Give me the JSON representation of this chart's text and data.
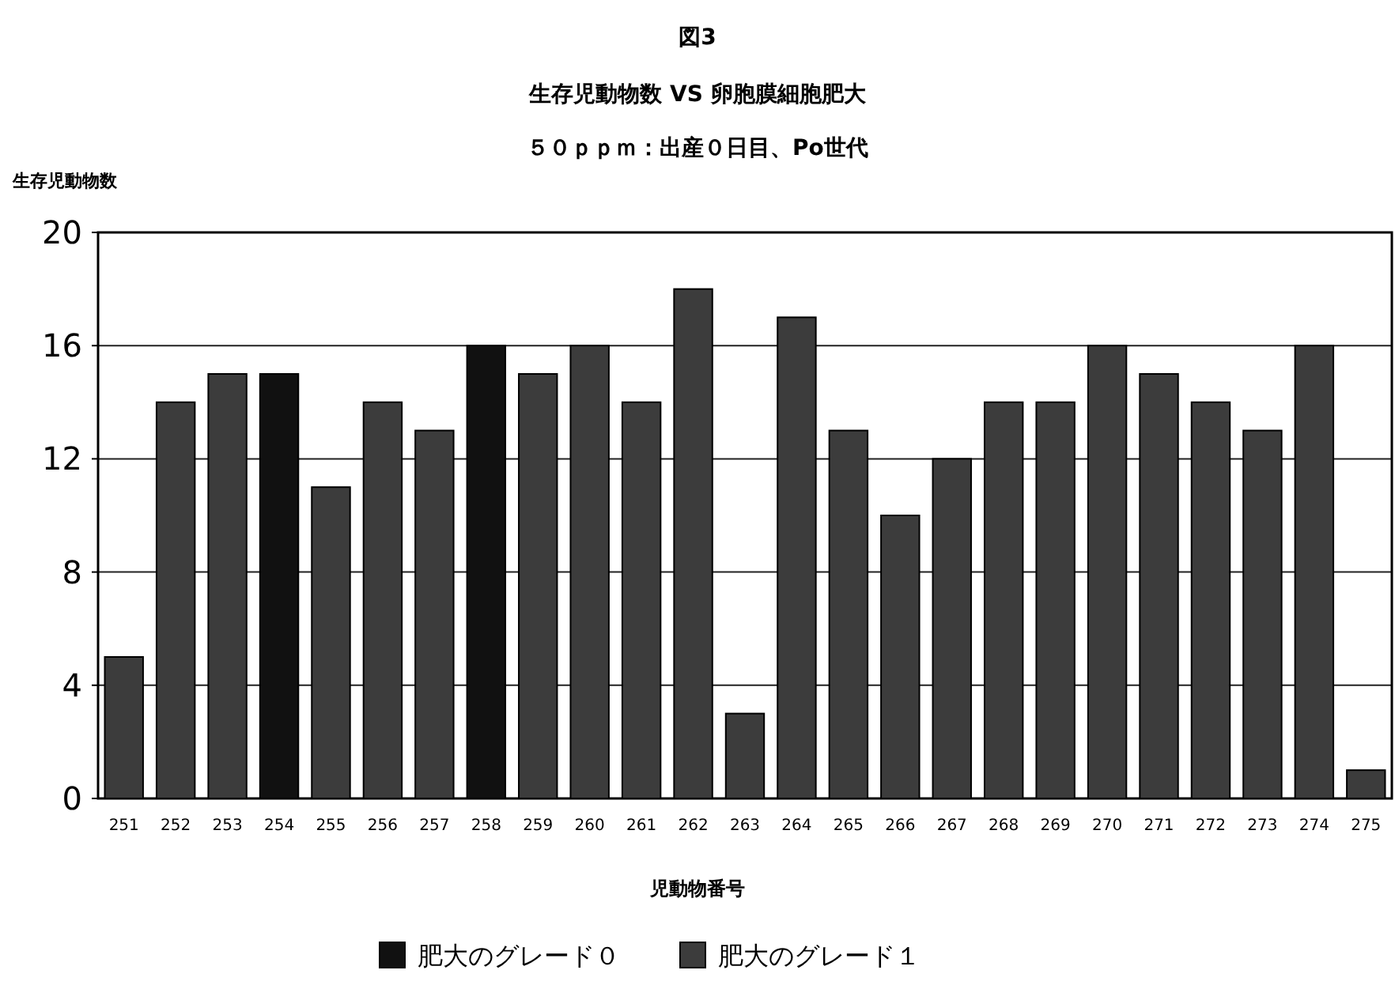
{
  "chart_data": {
    "type": "bar",
    "title": "図3",
    "subtitle": "生存児動物数 VS 卵胞膜細胞肥大",
    "annotations": [
      "５０ｐｐｍ：出産０日目、Po世代"
    ],
    "ylabel": "生存児動物数",
    "xlabel": "児動物番号",
    "categories": [
      "251",
      "252",
      "253",
      "254",
      "255",
      "256",
      "257",
      "258",
      "259",
      "260",
      "261",
      "262",
      "263",
      "264",
      "265",
      "266",
      "267",
      "268",
      "269",
      "270",
      "271",
      "272",
      "273",
      "274",
      "275"
    ],
    "series": [
      {
        "name": "肥大のグレード０",
        "color": "#111111",
        "values": [
          null,
          null,
          null,
          15,
          null,
          null,
          null,
          16,
          null,
          null,
          null,
          null,
          null,
          null,
          null,
          null,
          null,
          null,
          null,
          null,
          null,
          null,
          null,
          null,
          null
        ]
      },
      {
        "name": "肥大のグレード１",
        "color": "#3c3c3c",
        "values": [
          5,
          14,
          15,
          null,
          11,
          14,
          13,
          null,
          15,
          16,
          14,
          18,
          3,
          17,
          13,
          10,
          12,
          14,
          14,
          16,
          15,
          14,
          13,
          16,
          1
        ]
      }
    ],
    "ylim": [
      0,
      20
    ],
    "yticks": [
      0,
      4,
      8,
      12,
      16,
      20
    ],
    "grid": "y",
    "legend": "bottom"
  }
}
